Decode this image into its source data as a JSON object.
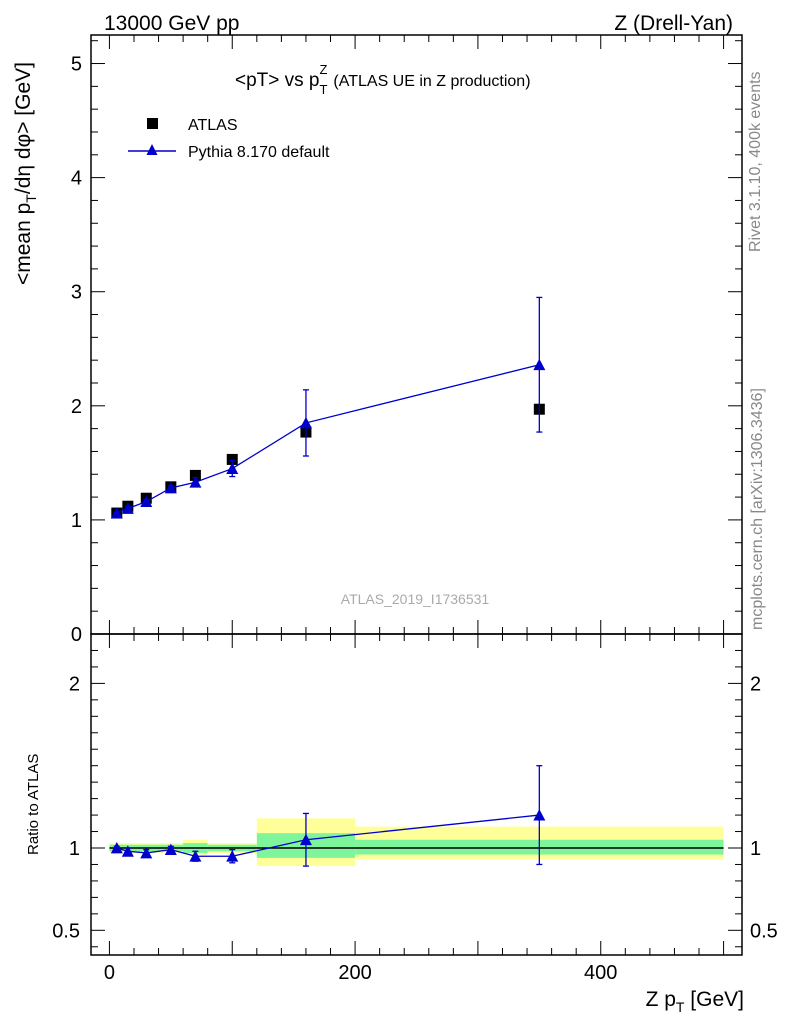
{
  "header": {
    "left": "13000 GeV pp",
    "right": "Z (Drell-Yan)"
  },
  "side_labels": {
    "rivet": "Rivet 3.1.10,  400k events",
    "mcplots": "mcplots.cern.ch [arXiv:1306.3436]"
  },
  "colors": {
    "data": "#000000",
    "mc": "#0000cc",
    "band_inner": "#7ff59b",
    "band_outer": "#ffff99"
  },
  "chart_data": [
    {
      "type": "scatter",
      "panel": "main",
      "title": "<pT> vs p_T^Z (ATLAS UE in Z production)",
      "title_main": "<pT> vs p",
      "title_sub": "T",
      "title_sup": "Z",
      "title_rest": "(ATLAS UE in Z production)",
      "ylabel": "<mean p_T/dη dφ> [GeV]",
      "ylabel_pre": "<mean p",
      "ylabel_sub": "T",
      "ylabel_post": "/dη dφ> [GeV]",
      "watermark": "ATLAS_2019_I1736531",
      "xlim": [
        -15,
        515
      ],
      "ylim": [
        0,
        5.25
      ],
      "yticks": [
        0,
        1,
        2,
        3,
        4,
        5
      ],
      "ytick_labels": [
        "0",
        "1",
        "2",
        "3",
        "4",
        "5"
      ],
      "legend_position": "top-left",
      "series": [
        {
          "name": "ATLAS",
          "marker": "square",
          "x": [
            6,
            15,
            30,
            50,
            70,
            100,
            160,
            350
          ],
          "y": [
            1.06,
            1.12,
            1.19,
            1.29,
            1.39,
            1.53,
            1.77,
            1.97
          ]
        },
        {
          "name": "Pythia 8.170 default",
          "marker": "triangle",
          "line": true,
          "x": [
            6,
            15,
            30,
            50,
            70,
            100,
            160,
            350
          ],
          "y": [
            1.06,
            1.1,
            1.16,
            1.28,
            1.33,
            1.45,
            1.85,
            2.36
          ],
          "yerr": [
            0.01,
            0.02,
            0.02,
            0.02,
            0.04,
            0.07,
            0.29,
            0.59
          ]
        }
      ]
    },
    {
      "type": "scatter",
      "panel": "ratio",
      "ylabel": "Ratio to ATLAS",
      "xlabel": "Z p_T [GeV]",
      "xlabel_pre": "Z p",
      "xlabel_sub": "T",
      "xlabel_post": " [GeV]",
      "xlim": [
        -15,
        515
      ],
      "ylim": [
        0.35,
        2.3
      ],
      "yticks": [
        0.5,
        1,
        2
      ],
      "ytick_labels": [
        "0.5",
        "1",
        "2"
      ],
      "xticks": [
        0,
        200,
        400
      ],
      "xtick_labels": [
        "0",
        "200",
        "400"
      ],
      "bands": [
        {
          "x0": 0,
          "x1": 20,
          "inner": [
            0.98,
            1.02
          ],
          "outer": [
            0.97,
            1.03
          ]
        },
        {
          "x0": 20,
          "x1": 40,
          "inner": [
            0.98,
            1.02
          ],
          "outer": [
            0.97,
            1.03
          ]
        },
        {
          "x0": 40,
          "x1": 60,
          "inner": [
            0.98,
            1.02
          ],
          "outer": [
            0.97,
            1.03
          ]
        },
        {
          "x0": 60,
          "x1": 80,
          "inner": [
            0.97,
            1.03
          ],
          "outer": [
            0.96,
            1.05
          ]
        },
        {
          "x0": 80,
          "x1": 120,
          "inner": [
            0.98,
            1.02
          ],
          "outer": [
            0.97,
            1.03
          ]
        },
        {
          "x0": 120,
          "x1": 200,
          "inner": [
            0.94,
            1.09
          ],
          "outer": [
            0.89,
            1.18
          ]
        },
        {
          "x0": 200,
          "x1": 500,
          "inner": [
            0.96,
            1.05
          ],
          "outer": [
            0.93,
            1.13
          ]
        }
      ],
      "series": [
        {
          "name": "Pythia 8.170 default",
          "marker": "triangle",
          "line": true,
          "x": [
            6,
            15,
            30,
            50,
            70,
            100,
            160,
            350
          ],
          "y": [
            1.0,
            0.98,
            0.97,
            0.99,
            0.95,
            0.95,
            1.05,
            1.2
          ],
          "yerr": [
            0.01,
            0.02,
            0.02,
            0.02,
            0.03,
            0.04,
            0.16,
            0.3
          ]
        }
      ]
    }
  ]
}
